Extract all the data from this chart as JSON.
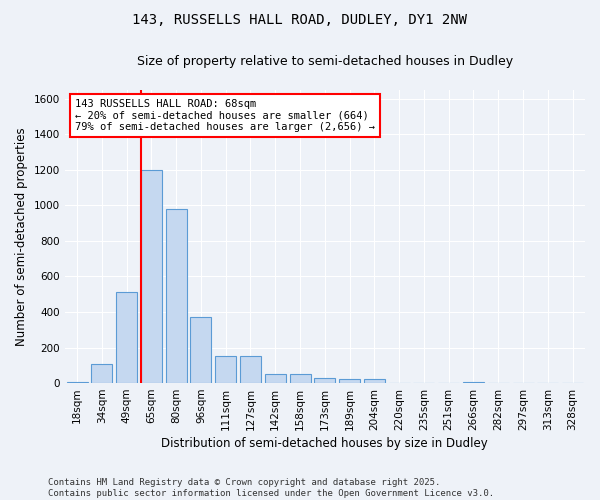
{
  "title_line1": "143, RUSSELLS HALL ROAD, DUDLEY, DY1 2NW",
  "title_line2": "Size of property relative to semi-detached houses in Dudley",
  "xlabel": "Distribution of semi-detached houses by size in Dudley",
  "ylabel": "Number of semi-detached properties",
  "categories": [
    "18sqm",
    "34sqm",
    "49sqm",
    "65sqm",
    "80sqm",
    "96sqm",
    "111sqm",
    "127sqm",
    "142sqm",
    "158sqm",
    "173sqm",
    "189sqm",
    "204sqm",
    "220sqm",
    "235sqm",
    "251sqm",
    "266sqm",
    "282sqm",
    "297sqm",
    "313sqm",
    "328sqm"
  ],
  "values": [
    5,
    110,
    510,
    1200,
    980,
    370,
    155,
    155,
    50,
    50,
    30,
    25,
    25,
    0,
    0,
    0,
    8,
    0,
    0,
    0,
    3
  ],
  "bar_color": "#c5d8f0",
  "bar_edge_color": "#5b9bd5",
  "vline_color": "red",
  "vline_x": 2.5,
  "annotation_text": "143 RUSSELLS HALL ROAD: 68sqm\n← 20% of semi-detached houses are smaller (664)\n79% of semi-detached houses are larger (2,656) →",
  "annotation_box_color": "white",
  "annotation_box_edge": "red",
  "footer_line1": "Contains HM Land Registry data © Crown copyright and database right 2025.",
  "footer_line2": "Contains public sector information licensed under the Open Government Licence v3.0.",
  "ylim": [
    0,
    1650
  ],
  "yticks": [
    0,
    200,
    400,
    600,
    800,
    1000,
    1200,
    1400,
    1600
  ],
  "background_color": "#eef2f8",
  "grid_color": "white",
  "title_fontsize": 10,
  "subtitle_fontsize": 9,
  "axis_label_fontsize": 8.5,
  "tick_fontsize": 7.5,
  "footer_fontsize": 6.5
}
